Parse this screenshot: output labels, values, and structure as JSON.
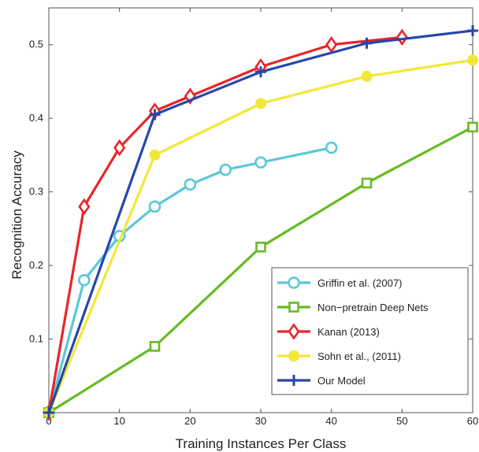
{
  "chart_data": {
    "type": "line",
    "xlabel": "Training Instances Per Class",
    "ylabel": "Recognition Accuracy",
    "xlim": [
      0,
      60
    ],
    "ylim": [
      0,
      0.55
    ],
    "xticks": [
      0,
      10,
      20,
      30,
      40,
      50,
      60
    ],
    "yticks": [
      0.1,
      0.2,
      0.3,
      0.4,
      0.5
    ],
    "xtick_labels": [
      "0",
      "10",
      "20",
      "30",
      "40",
      "50",
      "60"
    ],
    "ytick_labels": [
      "0.1",
      "0.2",
      "0.3",
      "0.4",
      "0.5"
    ],
    "grid": false,
    "legend_position": "bottom-right",
    "series": [
      {
        "name": "Griffin et al. (2007)",
        "color": "#5BC8D8",
        "marker": "circle",
        "x": [
          0,
          5,
          10,
          15,
          20,
          25,
          30,
          40
        ],
        "y": [
          0.0,
          0.18,
          0.24,
          0.28,
          0.31,
          0.33,
          0.34,
          0.36
        ]
      },
      {
        "name": "Non−pretrain Deep Nets",
        "color": "#66BB22",
        "marker": "square",
        "x": [
          0,
          15,
          30,
          45,
          60
        ],
        "y": [
          0.0,
          0.09,
          0.225,
          0.312,
          0.388
        ]
      },
      {
        "name": "Kanan (2013)",
        "color": "#E8252B",
        "marker": "diamond",
        "x": [
          0,
          5,
          10,
          15,
          20,
          30,
          40,
          50
        ],
        "y": [
          0.0,
          0.28,
          0.36,
          0.41,
          0.43,
          0.47,
          0.5,
          0.51
        ]
      },
      {
        "name": "Sohn et al., (2011)",
        "color": "#F2E837",
        "marker": "filled-circle",
        "x": [
          0,
          15,
          30,
          45,
          60
        ],
        "y": [
          0.0,
          0.35,
          0.42,
          0.457,
          0.479
        ]
      },
      {
        "name": "Our Model",
        "color": "#2548A8",
        "marker": "plus",
        "x": [
          0,
          15,
          30,
          45,
          60
        ],
        "y": [
          0.0,
          0.405,
          0.463,
          0.502,
          0.519
        ]
      }
    ]
  }
}
